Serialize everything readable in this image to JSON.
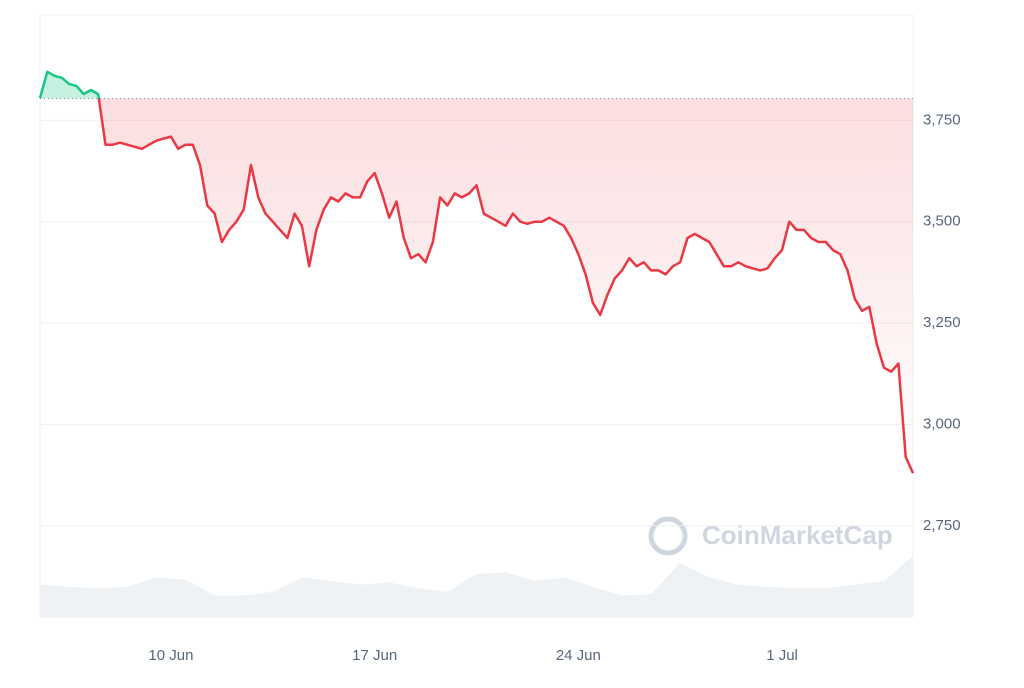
{
  "chart_data": {
    "type": "line",
    "watermark": "CoinMarketCap",
    "xlim": [
      0,
      120
    ],
    "xticks": [
      {
        "value": 18,
        "label": "10 Jun"
      },
      {
        "value": 46,
        "label": "17 Jun"
      },
      {
        "value": 74,
        "label": "24 Jun"
      },
      {
        "value": 102,
        "label": "1 Jul"
      }
    ],
    "ylim": [
      2525,
      4010
    ],
    "yticks": [
      {
        "value": 2750,
        "label": "2,750"
      },
      {
        "value": 3000,
        "label": "3,000"
      },
      {
        "value": 3250,
        "label": "3,250"
      },
      {
        "value": 3500,
        "label": "3,500"
      },
      {
        "value": 3750,
        "label": "3,750"
      }
    ],
    "grid": true,
    "reference_line": 3804,
    "up_color": "#16c784",
    "down_color": "#ea3943",
    "series": [
      {
        "color": "#ea3943",
        "values": [
          3805,
          3870,
          3860,
          3855,
          3840,
          3835,
          3815,
          3825,
          3815,
          3690,
          3690,
          3695,
          3690,
          3685,
          3680,
          3690,
          3700,
          3705,
          3710,
          3680,
          3690,
          3690,
          3640,
          3540,
          3520,
          3450,
          3480,
          3500,
          3530,
          3640,
          3560,
          3520,
          3500,
          3480,
          3460,
          3520,
          3490,
          3390,
          3480,
          3530,
          3560,
          3550,
          3570,
          3560,
          3560,
          3600,
          3620,
          3570,
          3510,
          3550,
          3460,
          3410,
          3420,
          3400,
          3450,
          3560,
          3540,
          3570,
          3560,
          3570,
          3590,
          3520,
          3510,
          3500,
          3490,
          3520,
          3500,
          3495,
          3500,
          3500,
          3510,
          3500,
          3490,
          3460,
          3420,
          3370,
          3300,
          3270,
          3320,
          3360,
          3380,
          3410,
          3390,
          3400,
          3380,
          3380,
          3370,
          3390,
          3400,
          3460,
          3470,
          3460,
          3450,
          3420,
          3390,
          3390,
          3400,
          3390,
          3385,
          3380,
          3385,
          3410,
          3430,
          3500,
          3480,
          3480,
          3460,
          3450,
          3450,
          3430,
          3420,
          3380,
          3310,
          3280,
          3290,
          3200,
          3140,
          3130,
          3150,
          2920,
          2880
        ]
      }
    ],
    "volume": {
      "color": "#eff2f5",
      "ylim": [
        0,
        100
      ],
      "values": [
        45,
        42,
        40,
        42,
        55,
        52,
        30,
        30,
        35,
        55,
        50,
        45,
        48,
        40,
        35,
        60,
        62,
        50,
        55,
        42,
        30,
        32,
        75,
        55,
        45,
        42,
        40,
        40,
        45,
        50,
        85
      ]
    }
  }
}
